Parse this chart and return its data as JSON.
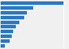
{
  "values": [
    100,
    52,
    42,
    38,
    30,
    24,
    20,
    18,
    14,
    7
  ],
  "bar_color": "#2878c2",
  "background_color": "#f0f0f0",
  "plot_bg_color": "#f0f0f0",
  "grid_color": "#ffffff",
  "bar_height": 0.75,
  "xlim": [
    0,
    108
  ]
}
